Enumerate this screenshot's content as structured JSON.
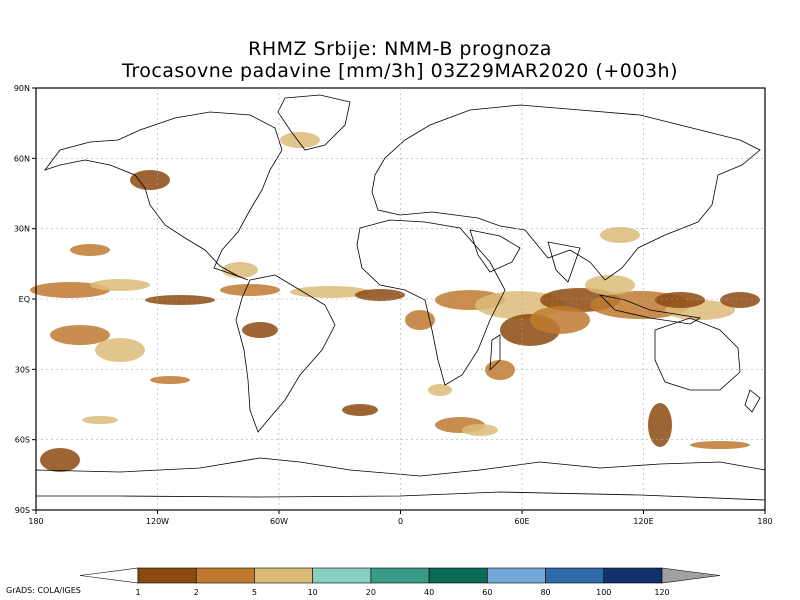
{
  "title_line1": "RHMZ Srbije: NMM-B prognoza",
  "title_line2": "Trocasovne padavine [mm/3h] 03Z29MAR2020 (+003h)",
  "lat_labels": [
    "90N",
    "60N",
    "30N",
    "EQ",
    "30S",
    "60S",
    "90S"
  ],
  "lon_labels": [
    "180",
    "120W",
    "60W",
    "0",
    "60E",
    "120E",
    "180"
  ],
  "legend": {
    "labels": [
      "1",
      "2",
      "5",
      "10",
      "20",
      "40",
      "60",
      "80",
      "100",
      "120"
    ],
    "colors": [
      "#8c4a10",
      "#c07a30",
      "#dcbb78",
      "#86d0c0",
      "#3a9a88",
      "#0a6a56",
      "#74a8d8",
      "#2e6aa8",
      "#12306e"
    ],
    "under_color": "#ffffff",
    "over_color": "#a0a0a0"
  },
  "credit": "GrADS: COLA/IGES"
}
